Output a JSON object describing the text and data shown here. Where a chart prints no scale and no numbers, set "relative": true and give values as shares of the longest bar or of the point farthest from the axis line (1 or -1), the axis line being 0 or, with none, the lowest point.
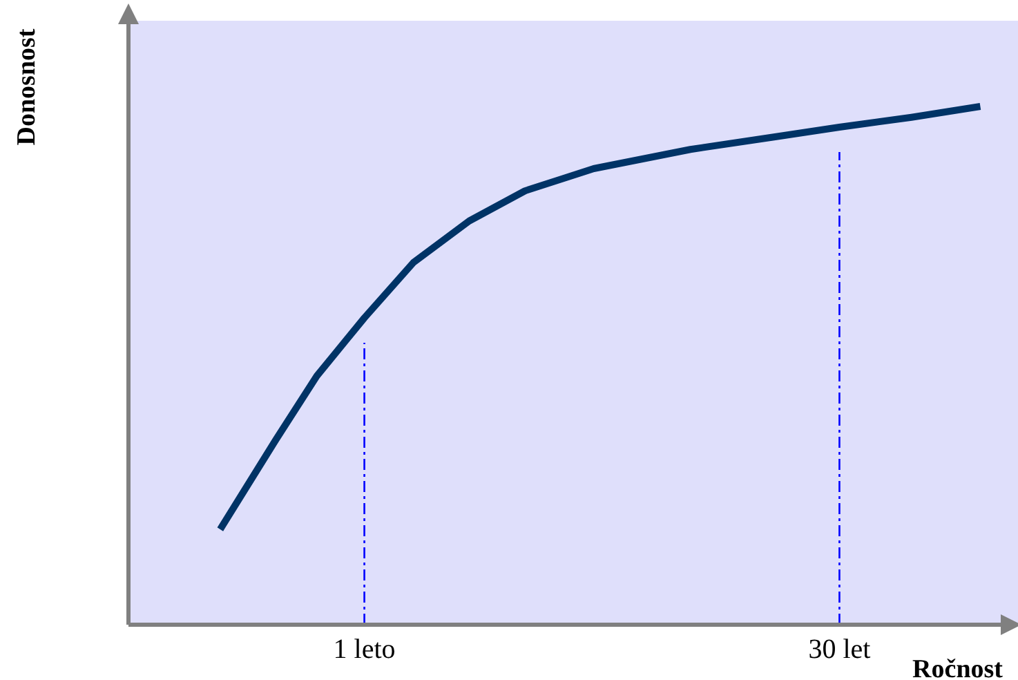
{
  "chart_data": {
    "type": "line",
    "relative": true,
    "xlabel": "Ročnost",
    "ylabel": "Donosnost",
    "xlim": [
      -13.4,
      40.9
    ],
    "xticks": [
      {
        "value": 1,
        "label": "1 leto"
      },
      {
        "value": 30,
        "label": "30 let"
      }
    ],
    "x": [
      -7.8,
      -4.4,
      -1.9,
      1,
      4,
      7.4,
      10.8,
      15,
      20.9,
      26,
      30,
      34.4,
      38.6
    ],
    "series": [
      {
        "color": "#003366",
        "values": [
          0.184,
          0.357,
          0.48,
          0.592,
          0.699,
          0.779,
          0.837,
          0.88,
          0.917,
          0.941,
          0.96,
          0.979,
          1
        ]
      }
    ],
    "ref_lines": [
      {
        "axis": "x",
        "value": 1,
        "color": "#0000ff"
      },
      {
        "axis": "x",
        "value": 30,
        "color": "#0000ff"
      }
    ],
    "grid": false
  }
}
